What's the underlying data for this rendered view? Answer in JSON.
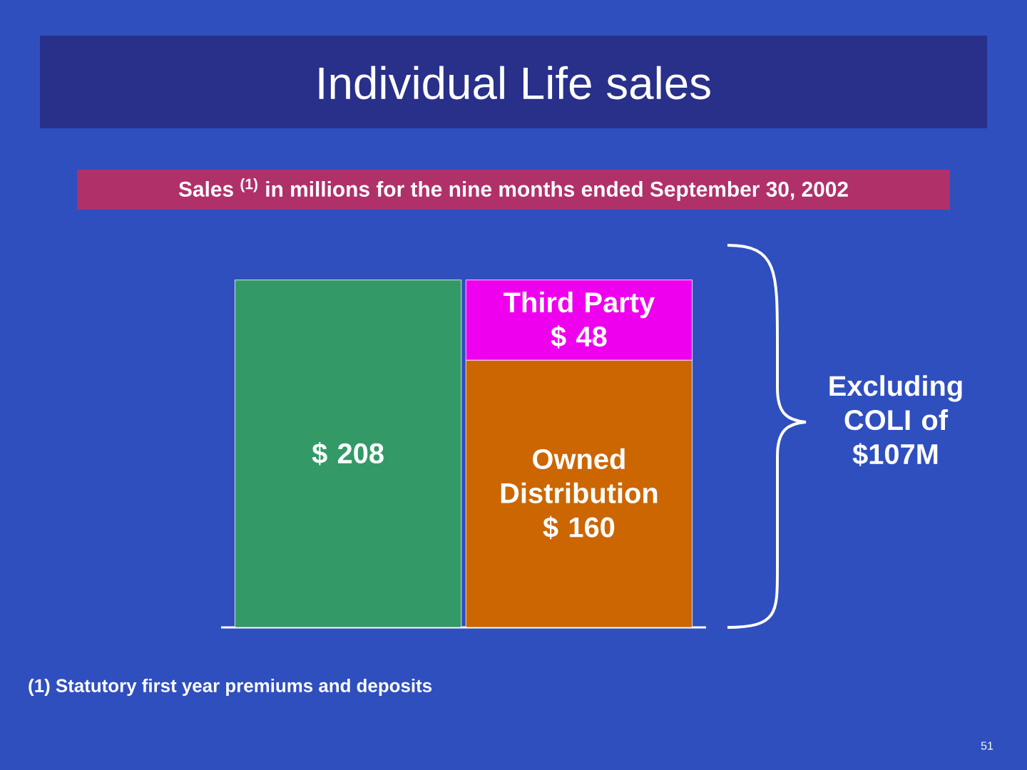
{
  "chart_data": {
    "type": "bar",
    "title": "Individual Life sales",
    "subtitle": "Sales $^{(1)}$ in millions for the nine months ended September 30, 2002",
    "categories": [
      null,
      null
    ],
    "stacked": true,
    "series": [
      {
        "color": "#339966",
        "values": [
          208,
          null
        ],
        "value_labels": [
          "$ 208",
          null
        ]
      },
      {
        "name": "Owned Distribution",
        "color": "#cc6600",
        "values": [
          null,
          160
        ],
        "value_labels": [
          null,
          "$ 160"
        ]
      },
      {
        "name": "Third Party",
        "color": "#ee00ee",
        "values": [
          null,
          48
        ],
        "value_labels": [
          null,
          "$ 48"
        ]
      }
    ],
    "annotations": [
      "Excluding COLI of $107M",
      "(1) Statutory first year premiums and deposits",
      "51"
    ]
  }
}
